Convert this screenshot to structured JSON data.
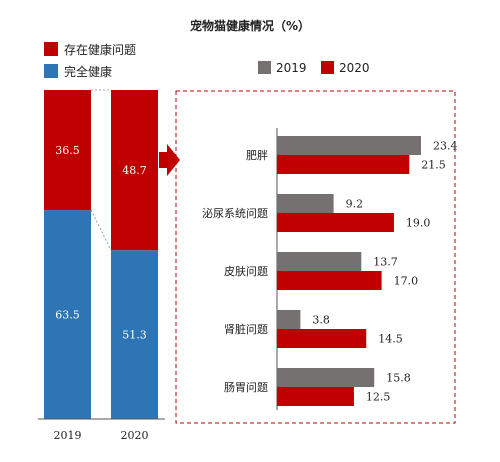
{
  "title": "宠物猫健康情况（%）",
  "colors": {
    "red": "#c00000",
    "blue": "#2e75b6",
    "gray": "#767171"
  },
  "chart_data": [
    {
      "type": "bar",
      "stacked": true,
      "categories": [
        "2019",
        "2020"
      ],
      "series": [
        {
          "name": "完全健康",
          "color": "#2e75b6",
          "values": [
            63.5,
            51.3
          ]
        },
        {
          "name": "存在健康问题",
          "color": "#c00000",
          "values": [
            36.5,
            48.7
          ]
        }
      ],
      "ylim": [
        0,
        100
      ],
      "legend": "top-left"
    },
    {
      "type": "bar",
      "orientation": "horizontal",
      "categories": [
        "肥胖",
        "泌尿系统问题",
        "皮肤问题",
        "肾脏问题",
        "肠胃问题"
      ],
      "series": [
        {
          "name": "2019",
          "color": "#767171",
          "values": [
            23.4,
            9.2,
            13.7,
            3.8,
            15.8
          ]
        },
        {
          "name": "2020",
          "color": "#c00000",
          "values": [
            21.5,
            19.0,
            17.0,
            14.5,
            12.5
          ]
        }
      ],
      "xlim": [
        0,
        25
      ],
      "legend": "top"
    }
  ]
}
